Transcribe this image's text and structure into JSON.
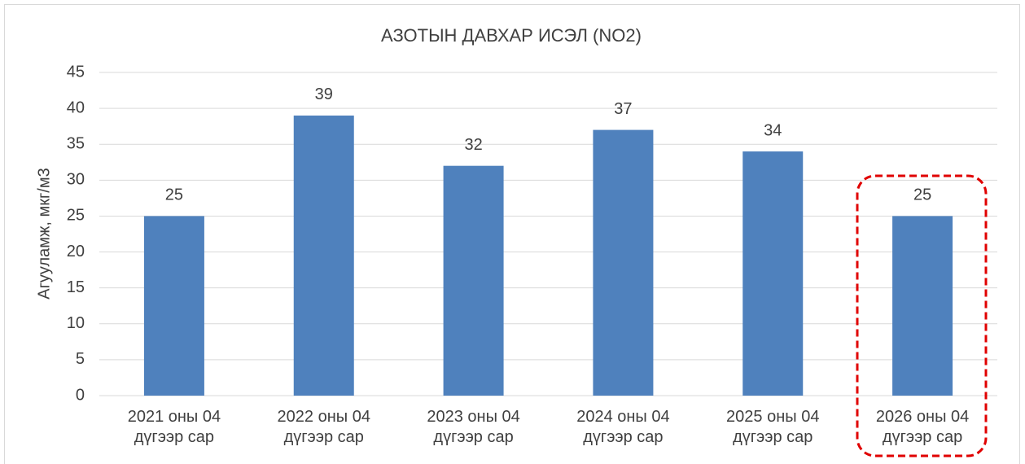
{
  "chart_data": {
    "type": "bar",
    "title": "АЗОТЫН ДАВХАР ИСЭЛ (NO2)",
    "y_label": "Агууламж, мкг/м3",
    "categories": [
      "2021 оны 04 дүгээр сар",
      "2022 оны 04 дүгээр сар",
      "2023 оны 04 дүгээр сар",
      "2024 оны 04 дүгээр сар",
      "2025 оны 04 дүгээр сар",
      "2026 оны 04 дүгээр сар"
    ],
    "values": [
      25,
      39,
      32,
      37,
      34,
      25
    ],
    "color": "#4f81bd",
    "ylim": [
      0,
      45
    ],
    "yticks": [
      0,
      5,
      10,
      15,
      20,
      25,
      30,
      35,
      40,
      45
    ],
    "grid": true
  }
}
